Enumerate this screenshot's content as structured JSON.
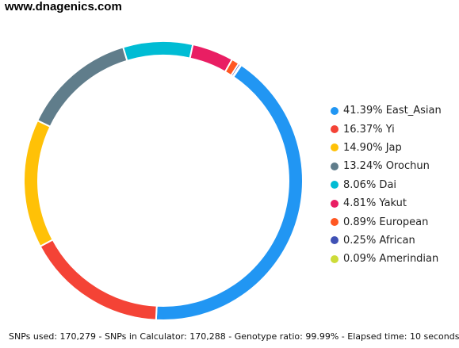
{
  "site_label": "www.dnagenics.com",
  "footer": {
    "text": "SNPs used: 170,279 - SNPs in Calculator: 170,288 - Genotype ratio: 99.99% - Elapsed time: 10 seconds"
  },
  "chart_data": {
    "type": "pie",
    "style": "donut",
    "legend_position": "right",
    "start_angle_deg": 34,
    "series": [
      {
        "label": "41.39% East_Asian",
        "value": 41.39,
        "color": "#2196f3"
      },
      {
        "label": "16.37% Yi",
        "value": 16.37,
        "color": "#f44336"
      },
      {
        "label": "14.90% Jap",
        "value": 14.9,
        "color": "#ffc107"
      },
      {
        "label": "13.24% Orochun",
        "value": 13.24,
        "color": "#607d8b"
      },
      {
        "label": "8.06% Dai",
        "value": 8.06,
        "color": "#00bcd4"
      },
      {
        "label": "4.81% Yakut",
        "value": 4.81,
        "color": "#e91e63"
      },
      {
        "label": "0.89% European",
        "value": 0.89,
        "color": "#ff5722"
      },
      {
        "label": "0.25% African",
        "value": 0.25,
        "color": "#3f51b5"
      },
      {
        "label": "0.09% Amerindian",
        "value": 0.09,
        "color": "#cddc39"
      }
    ]
  }
}
